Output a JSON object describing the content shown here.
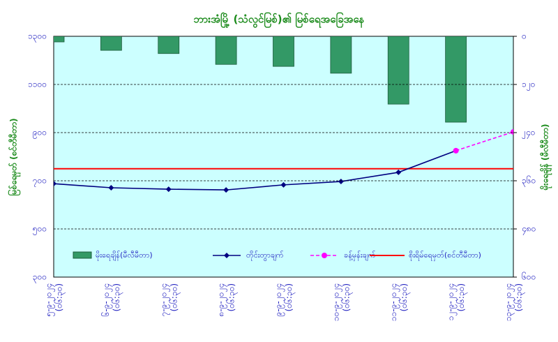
{
  "chart_data": {
    "type": "combo",
    "title": "ဘားအံမြို့ (သံလွင်မြစ်)၏ မြစ်ရေအခြေအနေ",
    "ylabel": "မြစ်ရေမှတ် (စင်တီမီတာ)",
    "y2label": "မိုးရေချိန် (မီလီမီတာ)",
    "categories": [
      "၅-၉-၂၀၂၄",
      "၆-၉-၂၀၂၄",
      "၇-၉-၂၀၂၄",
      "၈-၉-၂၀၂၄",
      "၉-၉-၂၀၂၄",
      "၁၀-၉-၂၀၂၄",
      "၁၁-၉-၂၀၂၄",
      "၁၂-၉-၂၀၂၄",
      "၁၃-၉-၂၀၂၄"
    ],
    "category_times": [
      "(၀၆:၃၀)",
      "(၀၆:၃၀)",
      "(၀၆:၃၀)",
      "(၀၆:၃၀)",
      "(၀၆:၃၀)",
      "(၀၆:၃၀)",
      "(၀၆:၃၀)",
      "(၀၆:၃၀)",
      "(၀၆:၃၀)"
    ],
    "ylim": [
      300,
      1300
    ],
    "yticks": [
      {
        "value": 300,
        "label": "၃၀၀"
      },
      {
        "value": 500,
        "label": "၅၀၀"
      },
      {
        "value": 700,
        "label": "၇၀၀"
      },
      {
        "value": 900,
        "label": "၉၀၀"
      },
      {
        "value": 1100,
        "label": "၁၁၀၀"
      },
      {
        "value": 1300,
        "label": "၁၃၀၀"
      }
    ],
    "y2lim": [
      600,
      0
    ],
    "y2ticks": [
      {
        "value": 600,
        "label": "၆၀၀"
      },
      {
        "value": 480,
        "label": "၄၈၀"
      },
      {
        "value": 360,
        "label": "၃၆၀"
      },
      {
        "value": 240,
        "label": "၂၄၀"
      },
      {
        "value": 120,
        "label": "၁၂၀"
      },
      {
        "value": 0,
        "label": "၀"
      }
    ],
    "grid": true,
    "series": [
      {
        "name": "မိုးရေချိန်(မီလီမီတာ)",
        "kind": "bar",
        "axis": "y2",
        "color": "#339966",
        "values": [
          14,
          35,
          43,
          70,
          75,
          92,
          169,
          214,
          null
        ]
      },
      {
        "name": "တိုင်းတွာချက်",
        "kind": "line",
        "marker": "diamond",
        "color": "#000080",
        "values": [
          688,
          671,
          665,
          662,
          683,
          697,
          735,
          825,
          null
        ]
      },
      {
        "name": "ခန့်မှန်းချက်",
        "kind": "line",
        "marker": "circle",
        "dashed": true,
        "color": "#ff00ff",
        "values": [
          null,
          null,
          null,
          null,
          null,
          null,
          null,
          825,
          903
        ]
      }
    ],
    "threshold": {
      "name": "စိုးရိမ်ရေမှတ်(စင်တီမီတာ)",
      "color": "#ff0000",
      "value": 750
    }
  }
}
